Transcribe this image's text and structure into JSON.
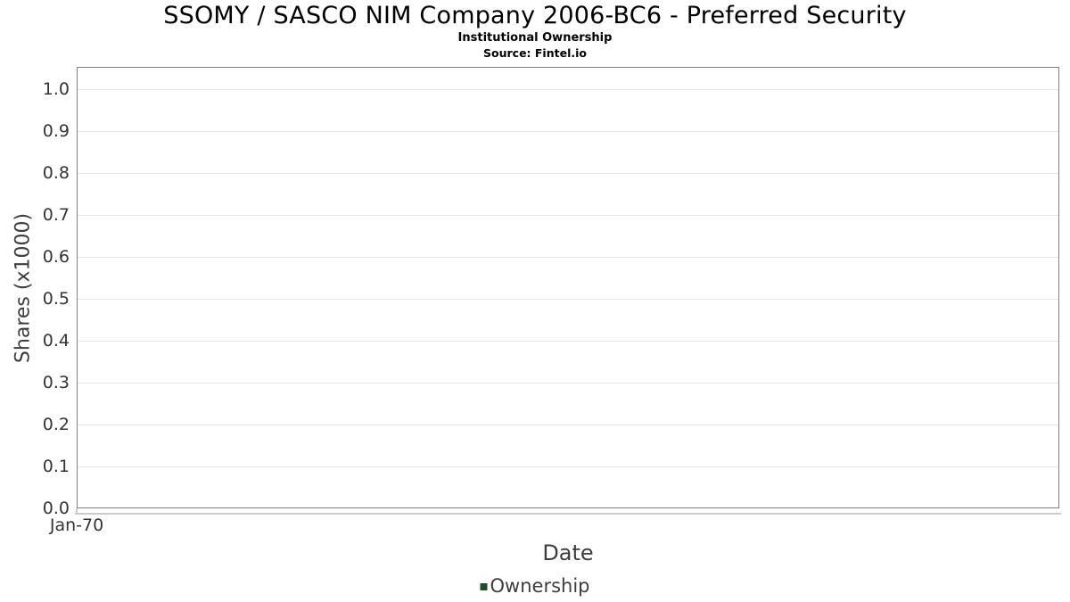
{
  "header": {
    "title": "SSOMY / SASCO NIM Company 2006-BC6 - Preferred Security",
    "subtitle": "Institutional Ownership",
    "source": "Source: Fintel.io"
  },
  "chart_data": {
    "type": "line",
    "title": "SSOMY / SASCO NIM Company 2006-BC6 - Preferred Security",
    "subtitle": "Institutional Ownership",
    "source": "Source: Fintel.io",
    "xlabel": "Date",
    "ylabel": "Shares (x1000)",
    "x_ticks": [
      "Jan-70"
    ],
    "y_ticks": [
      "0.0",
      "0.1",
      "0.2",
      "0.3",
      "0.4",
      "0.5",
      "0.6",
      "0.7",
      "0.8",
      "0.9",
      "1.0"
    ],
    "ylim": [
      0.0,
      1.0
    ],
    "grid": "horizontal-only",
    "legend": {
      "position": "bottom-center",
      "entries": [
        {
          "label": "Ownership",
          "color": "#1f4d2b"
        }
      ]
    },
    "series": [
      {
        "name": "Ownership",
        "x": [],
        "y": []
      }
    ]
  },
  "colors": {
    "title_text": "#000000",
    "tick_text": "#343434",
    "axis_title_text": "#3d3d3d",
    "plot_border": "#7e7e7e",
    "gridline": "#e5e5e5",
    "axis_line": "#cccccc",
    "legend_swatch": "#1f4d2b"
  }
}
